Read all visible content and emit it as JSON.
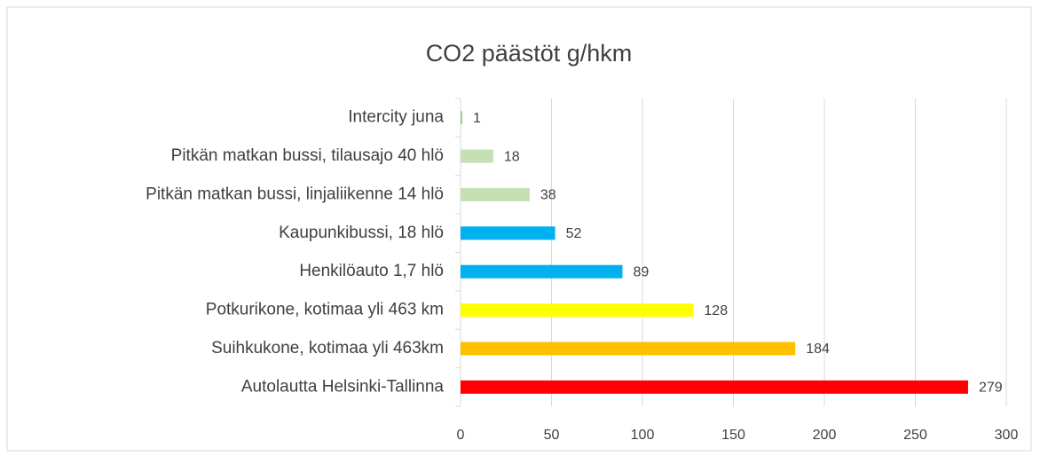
{
  "chart_data": {
    "type": "bar",
    "orientation": "horizontal",
    "title": "CO2 päästöt g/hkm",
    "categories": [
      "Intercity juna",
      "Pitkän matkan bussi, tilausajo 40 hlö",
      "Pitkän matkan bussi, linjaliikenne 14 hlö",
      "Kaupunkibussi, 18 hlö",
      "Henkilöauto 1,7 hlö",
      "Potkurikone, kotimaa yli 463 km",
      "Suihkukone, kotimaa yli 463km",
      "Autolautta Helsinki-Tallinna"
    ],
    "values": [
      1,
      18,
      38,
      52,
      89,
      128,
      184,
      279
    ],
    "colors": [
      "#a9d18e",
      "#c5e0b4",
      "#c5e0b4",
      "#00b0f0",
      "#00b0f0",
      "#ffff00",
      "#ffc000",
      "#ff0000"
    ],
    "xlim": [
      0,
      300
    ],
    "xticks": [
      0,
      50,
      100,
      150,
      200,
      250,
      300
    ],
    "grid": true
  }
}
